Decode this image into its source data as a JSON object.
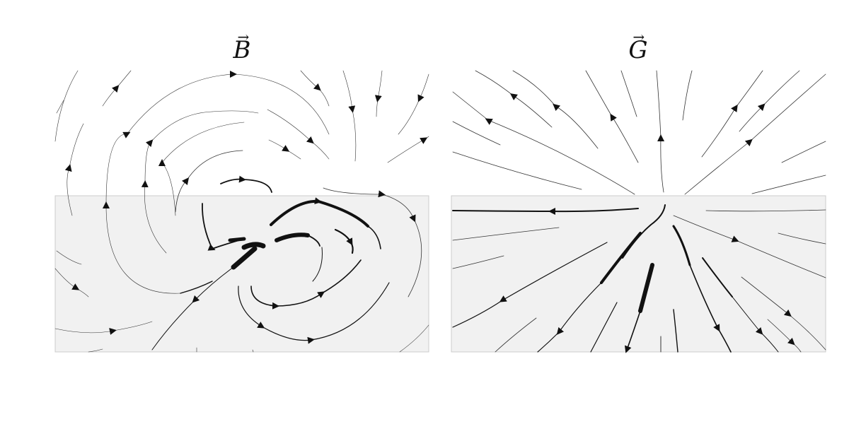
{
  "panels": [
    {
      "id": "b",
      "title": "B",
      "arrow_mark": "→",
      "region_color": "#f1f1f1",
      "line_color": "#111111"
    },
    {
      "id": "g",
      "title": "G",
      "arrow_mark": "→",
      "region_color": "#f1f1f1",
      "line_color": "#111111"
    }
  ]
}
